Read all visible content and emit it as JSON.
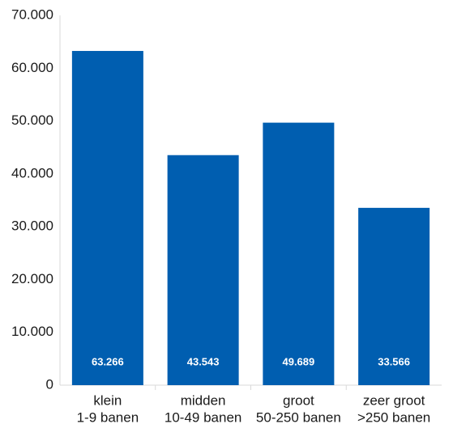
{
  "chart_data": {
    "type": "bar",
    "categories": [
      [
        "klein",
        "1-9 banen"
      ],
      [
        "midden",
        "10-49 banen"
      ],
      [
        "groot",
        "50-250 banen"
      ],
      [
        "zeer groot",
        ">250 banen"
      ]
    ],
    "values": [
      63266,
      43543,
      49689,
      33566
    ],
    "value_labels": [
      "63.266",
      "43.543",
      "49.689",
      "33.566"
    ],
    "ylim": [
      0,
      70000
    ],
    "yticks": [
      0,
      10000,
      20000,
      30000,
      40000,
      50000,
      60000,
      70000
    ],
    "ytick_labels": [
      "0",
      "10.000",
      "20.000",
      "30.000",
      "40.000",
      "50.000",
      "60.000",
      "70.000"
    ],
    "title": "",
    "xlabel": "",
    "ylabel": "",
    "grid": false,
    "bar_color": "#005eb0"
  }
}
